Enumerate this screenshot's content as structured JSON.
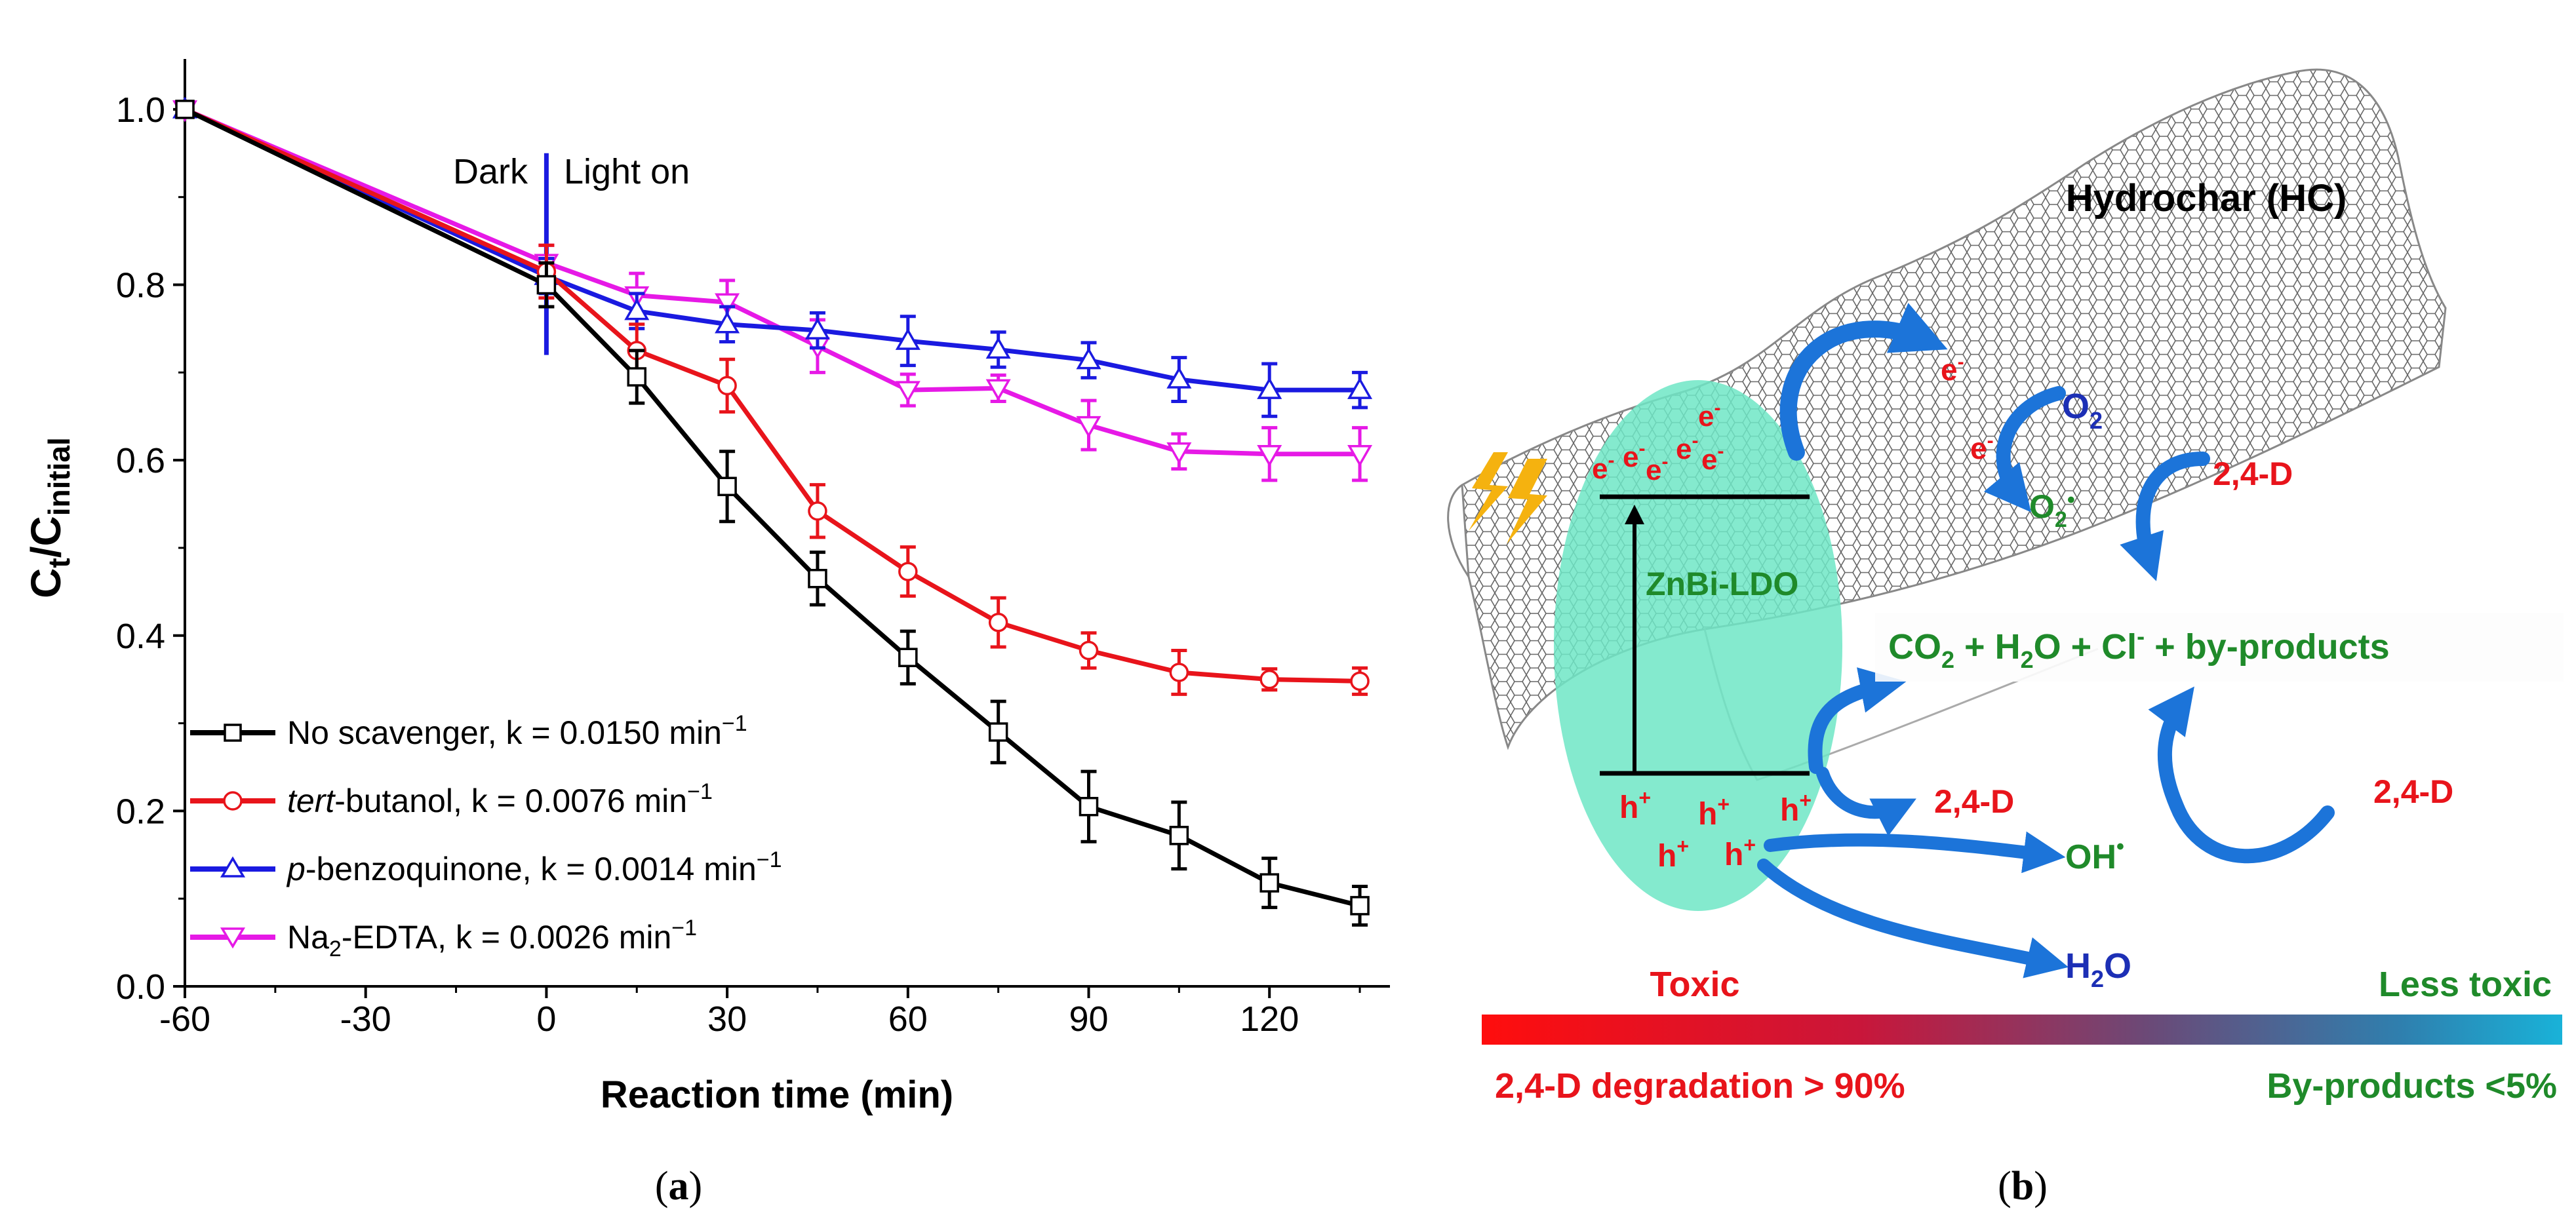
{
  "chart_data": {
    "type": "line",
    "panel_label": "(a)",
    "xlabel": "Reaction time (min)",
    "ylabel_main": "C",
    "ylabel_sub_t": "t",
    "ylabel_slash": "/C",
    "ylabel_sub_initial": "initial",
    "xlim": [
      -60,
      140
    ],
    "ylim": [
      0.0,
      1.05
    ],
    "xticks": [
      -60,
      -30,
      0,
      30,
      60,
      90,
      120
    ],
    "xtick_labels": [
      "-60",
      "-30",
      "0",
      "30",
      "60",
      "90",
      "120"
    ],
    "yticks": [
      0.0,
      0.2,
      0.4,
      0.6,
      0.8,
      1.0
    ],
    "ytick_labels": [
      "0.0",
      "0.2",
      "0.4",
      "0.6",
      "0.8",
      "1.0"
    ],
    "annotations": {
      "dark": "Dark",
      "light_on": "Light on",
      "light_x": 0
    },
    "x": [
      -60,
      0,
      15,
      30,
      45,
      60,
      75,
      90,
      105,
      120,
      135
    ],
    "series": [
      {
        "name": "No scavenger",
        "italic_prefix": "",
        "sub": "",
        "label_rest": "No scavenger, k = 0.0150 min",
        "unit_sup": "−1",
        "color": "#000000",
        "marker": "square",
        "values": [
          1.0,
          0.8,
          0.695,
          0.57,
          0.465,
          0.375,
          0.29,
          0.205,
          0.172,
          0.118,
          0.092
        ],
        "errors": [
          0,
          0.025,
          0.03,
          0.04,
          0.03,
          0.03,
          0.035,
          0.04,
          0.038,
          0.028,
          0.022
        ]
      },
      {
        "name": "tert-butanol",
        "italic_prefix": "tert",
        "sub": "",
        "label_rest": "-butanol, k = 0.0076 min",
        "unit_sup": "−1",
        "color": "#e8141b",
        "marker": "circle",
        "values": [
          1.0,
          0.815,
          0.725,
          0.685,
          0.542,
          0.473,
          0.415,
          0.383,
          0.358,
          0.35,
          0.348
        ],
        "errors": [
          0,
          0.03,
          0.03,
          0.03,
          0.03,
          0.028,
          0.028,
          0.02,
          0.025,
          0.012,
          0.015
        ]
      },
      {
        "name": "p-benzoquinone",
        "italic_prefix": "p",
        "sub": "",
        "label_rest": "-benzoquinone, k = 0.0014 min",
        "unit_sup": "−1",
        "color": "#1a1ae0",
        "marker": "triangle-up",
        "values": [
          1.0,
          0.81,
          0.77,
          0.755,
          0.748,
          0.736,
          0.726,
          0.714,
          0.692,
          0.68,
          0.68
        ],
        "errors": [
          0,
          0.02,
          0.02,
          0.02,
          0.02,
          0.028,
          0.02,
          0.02,
          0.025,
          0.03,
          0.02
        ]
      },
      {
        "name": "Na2-EDTA",
        "italic_prefix": "",
        "sub": "2",
        "label_rest": "-EDTA, k = 0.0026 min",
        "label_pre": "Na",
        "unit_sup": "−1",
        "color": "#e619e6",
        "marker": "triangle-down",
        "values": [
          1.0,
          0.825,
          0.788,
          0.78,
          0.73,
          0.68,
          0.682,
          0.64,
          0.61,
          0.607,
          0.607
        ],
        "errors": [
          0,
          0.02,
          0.025,
          0.025,
          0.03,
          0.018,
          0.015,
          0.028,
          0.02,
          0.03,
          0.03
        ]
      }
    ]
  },
  "diagram": {
    "panel_label": "(b)",
    "hydrochar": "Hydrochar (HC)",
    "ldo": "ZnBi-LDO",
    "electron": "e",
    "electron_sup": "-",
    "hole": "h",
    "hole_sup": "+",
    "o2": "O",
    "o2_sub": "2",
    "superoxide": "O",
    "superoxide_sub": "2",
    "superoxide_sup": "•",
    "target": "2,4-D",
    "oh": "OH",
    "oh_sup": "•",
    "h2o_a": "H",
    "h2o_sub": "2",
    "h2o_b": "O",
    "products_a": "CO",
    "products_sub": "2",
    "products_b": " + H",
    "products_sub2": "2",
    "products_c": "O + Cl",
    "products_sup": "-",
    "products_d": " + by-products",
    "toxic": "Toxic",
    "less_toxic": "Less toxic",
    "degradation": "2,4-D degradation > 90%",
    "byproducts": "By-products <5%",
    "colors": {
      "red": "#e8141b",
      "green": "#1f8a2a",
      "blue": "#1c2fb5",
      "arrow": "#1c74d9",
      "ellipse": "#6fe6c6"
    }
  }
}
